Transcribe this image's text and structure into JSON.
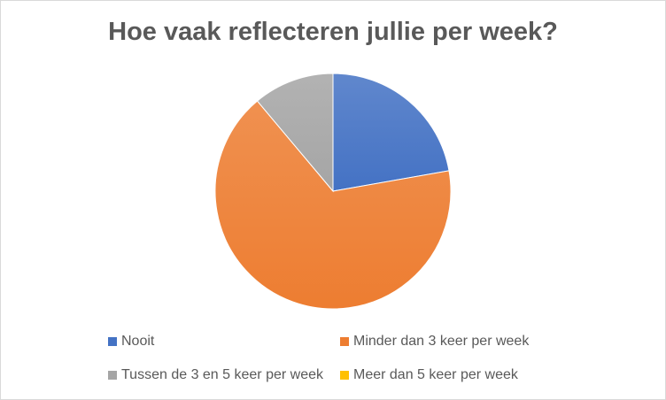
{
  "chart_data": {
    "type": "pie",
    "title": "Hoe vaak reflecteren jullie per week?",
    "categories": [
      "Nooit",
      "Minder dan 3 keer per week",
      "Tussen de 3 en 5 keer per week",
      "Meer dan 5 keer per week"
    ],
    "values": [
      2,
      6,
      1,
      0
    ],
    "colors": [
      "#4472C4",
      "#ED7D31",
      "#A5A5A5",
      "#FFC000"
    ],
    "start_angle": "top, clockwise",
    "legend_position": "bottom"
  }
}
